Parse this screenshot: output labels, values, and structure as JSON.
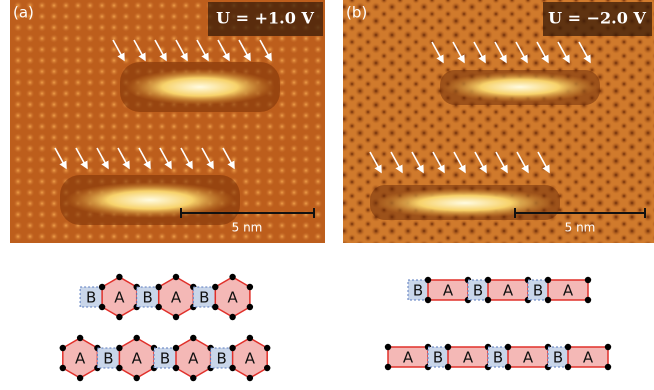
{
  "panels": [
    {
      "label": "(a)",
      "bias": "U = +1.0 V",
      "scale_bar": "5 nm"
    },
    {
      "label": "(b)",
      "bias": "U = −2.0 V",
      "scale_bar": "5 nm"
    }
  ],
  "diagrams": [
    {
      "rows": [
        [
          "B",
          "A",
          "B",
          "A",
          "B",
          "A"
        ],
        [
          "A",
          "B",
          "A",
          "B",
          "A",
          "B",
          "A"
        ]
      ]
    },
    {
      "rows": [
        [
          "B",
          "A",
          "B",
          "A",
          "B",
          "A"
        ],
        [
          "A",
          "B",
          "A",
          "B",
          "A",
          "B",
          "A"
        ]
      ]
    }
  ]
}
